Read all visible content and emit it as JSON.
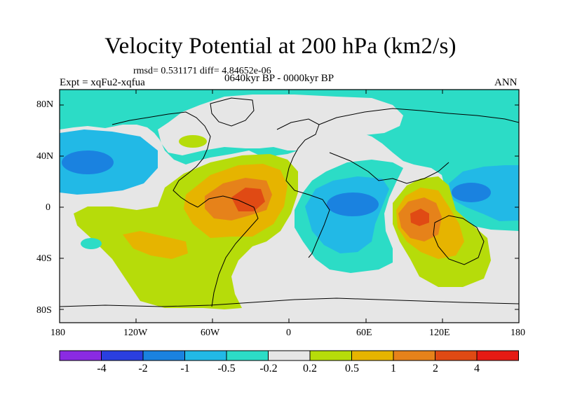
{
  "title": "Velocity Potential at 200 hPa (km2/s)",
  "stats": "rmsd= 0.531171 diff= 4.84652e-06",
  "experiment": "Expt = xqFu2-xqfua",
  "period": "0640kyr BP - 0000kyr BP",
  "season": "ANN",
  "y_axis_labels": [
    "80N",
    "40N",
    "0",
    "40S",
    "80S"
  ],
  "x_axis_labels": [
    "180",
    "120W",
    "60W",
    "0",
    "60E",
    "120E",
    "180"
  ],
  "colorbar": {
    "boundary_labels": [
      "-4",
      "-2",
      "-1",
      "-0.5",
      "-0.2",
      "0.2",
      "0.5",
      "1",
      "2",
      "4"
    ],
    "colors": [
      "#8a2be2",
      "#2a3fe0",
      "#1a82e0",
      "#22b9e6",
      "#2cdcc6",
      "#e6e6e6",
      "#b6dc0a",
      "#e6b400",
      "#e6821a",
      "#e04a14",
      "#e61a14"
    ]
  },
  "palette": {
    "neutral": "#e6e6e6",
    "teal": "#2cdcc6",
    "light_blue": "#22b9e6",
    "blue": "#1a82e0",
    "lime": "#b6dc0a",
    "yellow": "#e6b400",
    "orange": "#e6821a",
    "red_orange": "#e04a14"
  }
}
